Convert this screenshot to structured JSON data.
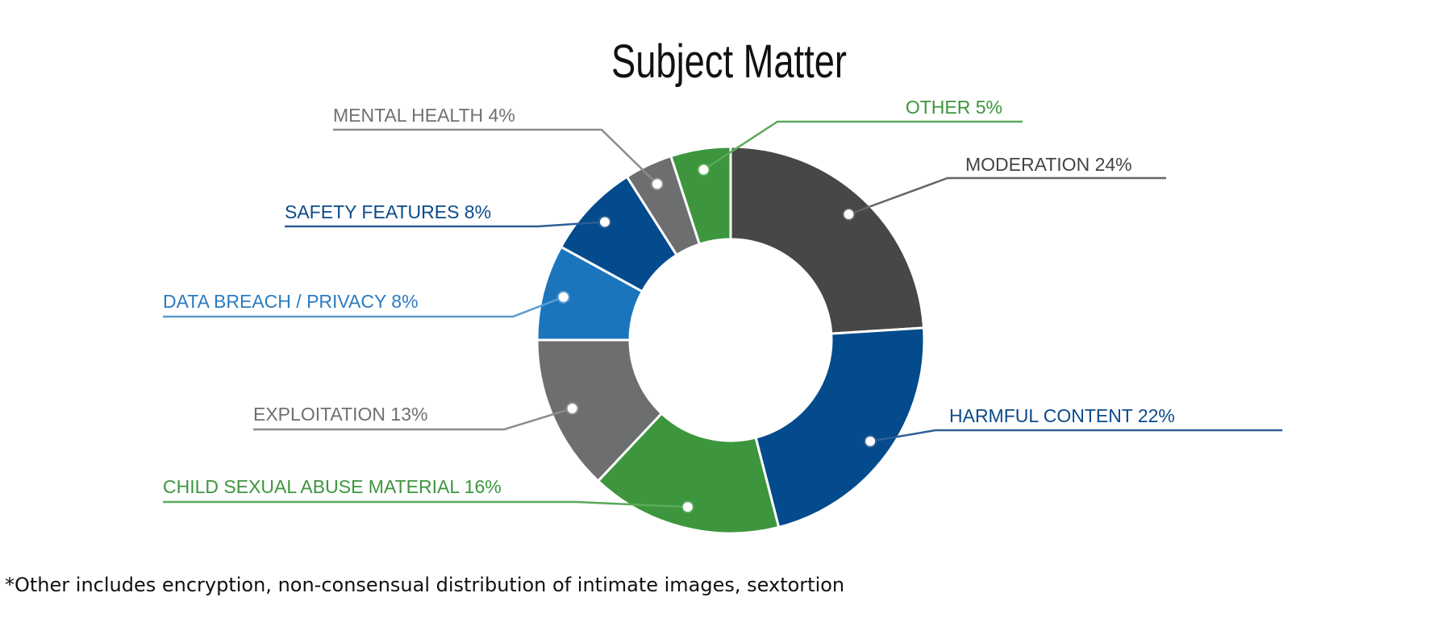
{
  "chart_data": {
    "type": "pie",
    "title": "Subject Matter",
    "slices": [
      {
        "label": "MODERATION 24%",
        "value": 24,
        "color": "#474747",
        "label_color": "#444444",
        "line_color": "#666666"
      },
      {
        "label": "HARMFUL CONTENT 22%",
        "value": 22,
        "color": "#034B8C",
        "label_color": "#0B4A8B",
        "line_color": "#2F5F96"
      },
      {
        "label": "CHILD SEXUAL ABUSE MATERIAL 16%",
        "value": 16,
        "color": "#3D963D",
        "label_color": "#3D963D",
        "line_color": "#5AAA5A"
      },
      {
        "label": "EXPLOITATION 13%",
        "value": 13,
        "color": "#6D6E70",
        "label_color": "#707070",
        "line_color": "#8C8C8C"
      },
      {
        "label": "DATA BREACH / PRIVACY 8%",
        "value": 8,
        "color": "#1B75BD",
        "label_color": "#2C7BC0",
        "line_color": "#5B9BD0"
      },
      {
        "label": "SAFETY FEATURES 8%",
        "value": 8,
        "color": "#034B8C",
        "label_color": "#0B4A8B",
        "line_color": "#2F5F96"
      },
      {
        "label": "MENTAL HEALTH 4%",
        "value": 4,
        "color": "#6D6E70",
        "label_color": "#707070",
        "line_color": "#8C8C8C"
      },
      {
        "label": "OTHER 5%",
        "value": 5,
        "color": "#3D963D",
        "label_color": "#3D963D",
        "line_color": "#5AAA5A"
      }
    ]
  },
  "footnote": "*Other includes encryption, non-consensual distribution of intimate images, sextortion"
}
